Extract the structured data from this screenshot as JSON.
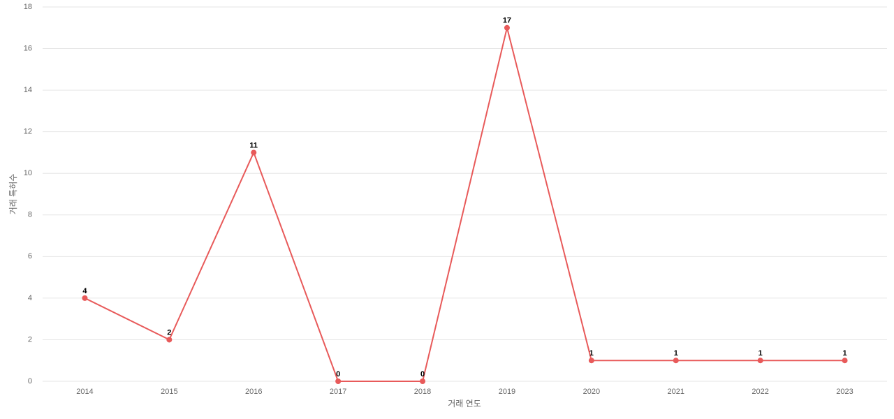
{
  "chart_data": {
    "type": "line",
    "x_label": "거래 연도",
    "y_label": "거래 특허수",
    "categories": [
      "2014",
      "2015",
      "2016",
      "2017",
      "2018",
      "2019",
      "2020",
      "2021",
      "2022",
      "2023"
    ],
    "values": [
      4,
      2,
      11,
      0,
      0,
      17,
      1,
      1,
      1,
      1
    ],
    "color": "#e85a5a",
    "ylim": [
      0,
      18
    ],
    "yticks": [
      0,
      2,
      4,
      6,
      8,
      10,
      12,
      14,
      16,
      18
    ],
    "grid": true
  }
}
